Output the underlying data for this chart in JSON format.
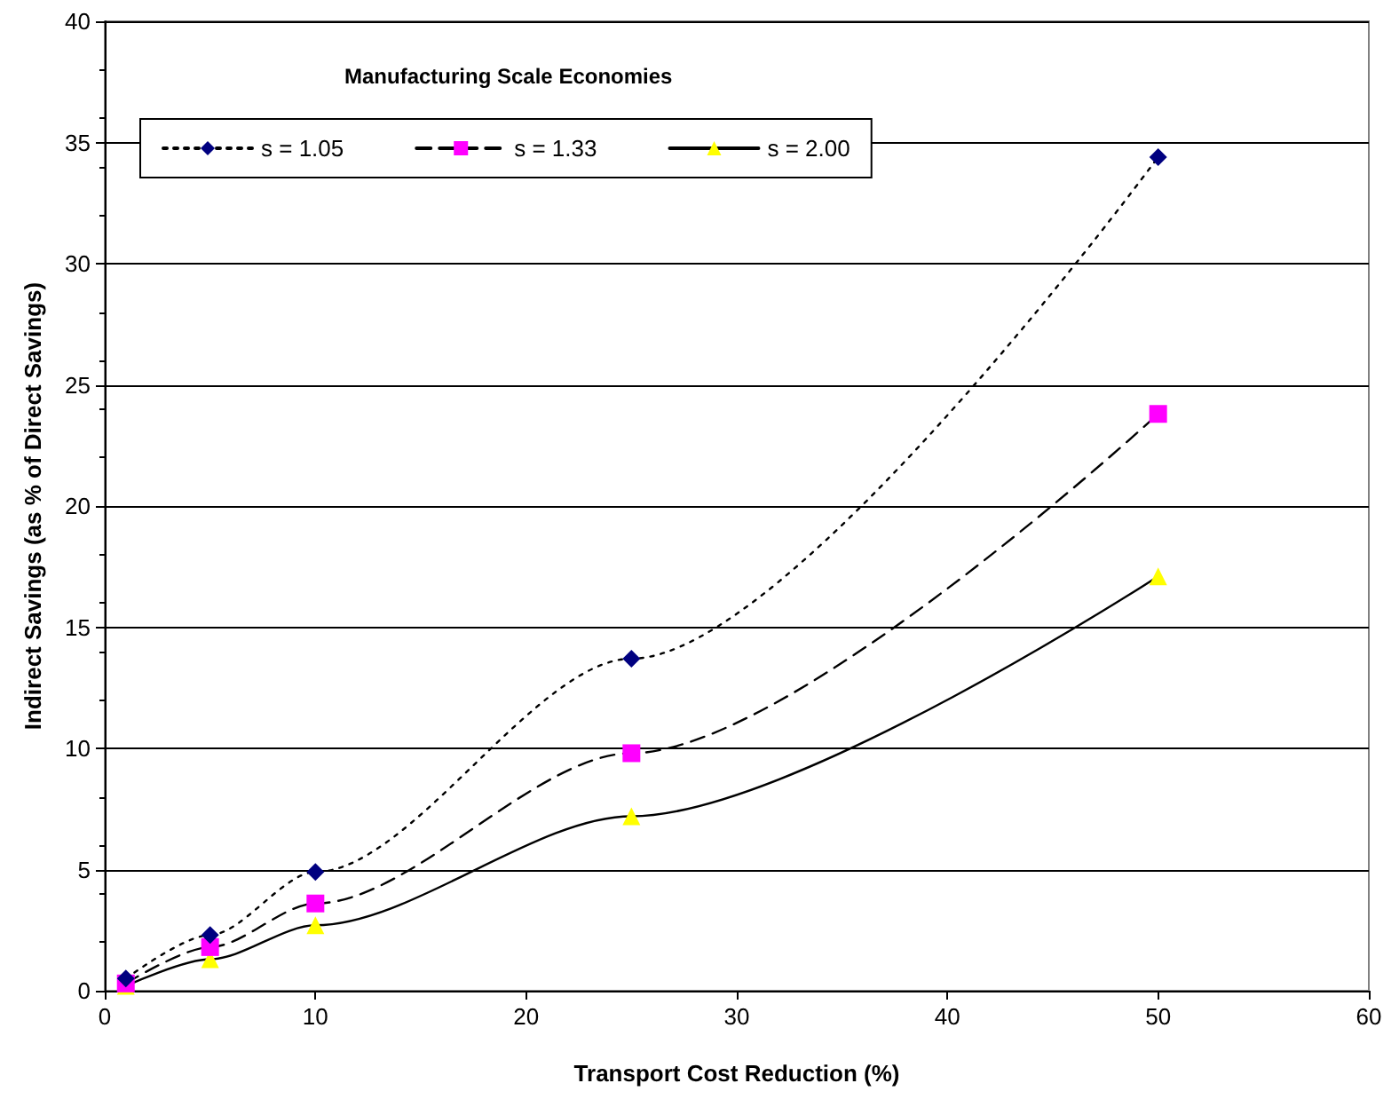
{
  "chart_data": {
    "type": "line",
    "xlabel": "Transport Cost Reduction (%)",
    "ylabel": "Indirect Savings (as % of Direct Savings)",
    "legend_title": "Manufacturing Scale Economies",
    "x": [
      1,
      5,
      10,
      25,
      50
    ],
    "series": [
      {
        "name": "s = 1.05",
        "color": "#000080",
        "marker": "diamond",
        "line_style": "dotted",
        "values": [
          0.5,
          2.3,
          4.9,
          13.7,
          34.4
        ]
      },
      {
        "name": "s = 1.33",
        "color": "#ff00ff",
        "marker": "square",
        "line_style": "dashed",
        "values": [
          0.3,
          1.8,
          3.6,
          9.8,
          23.8
        ]
      },
      {
        "name": "s = 2.00",
        "color": "#ffff00",
        "marker": "triangle",
        "line_style": "solid",
        "values": [
          0.2,
          1.3,
          2.7,
          7.2,
          17.1
        ]
      }
    ],
    "xlim": [
      0,
      60
    ],
    "xticks": [
      0,
      10,
      20,
      30,
      40,
      50,
      60
    ],
    "ylim": [
      0,
      40
    ],
    "yticks": [
      0,
      5,
      10,
      15,
      20,
      25,
      30,
      35,
      40
    ],
    "grid": "y",
    "legend": "top left"
  }
}
